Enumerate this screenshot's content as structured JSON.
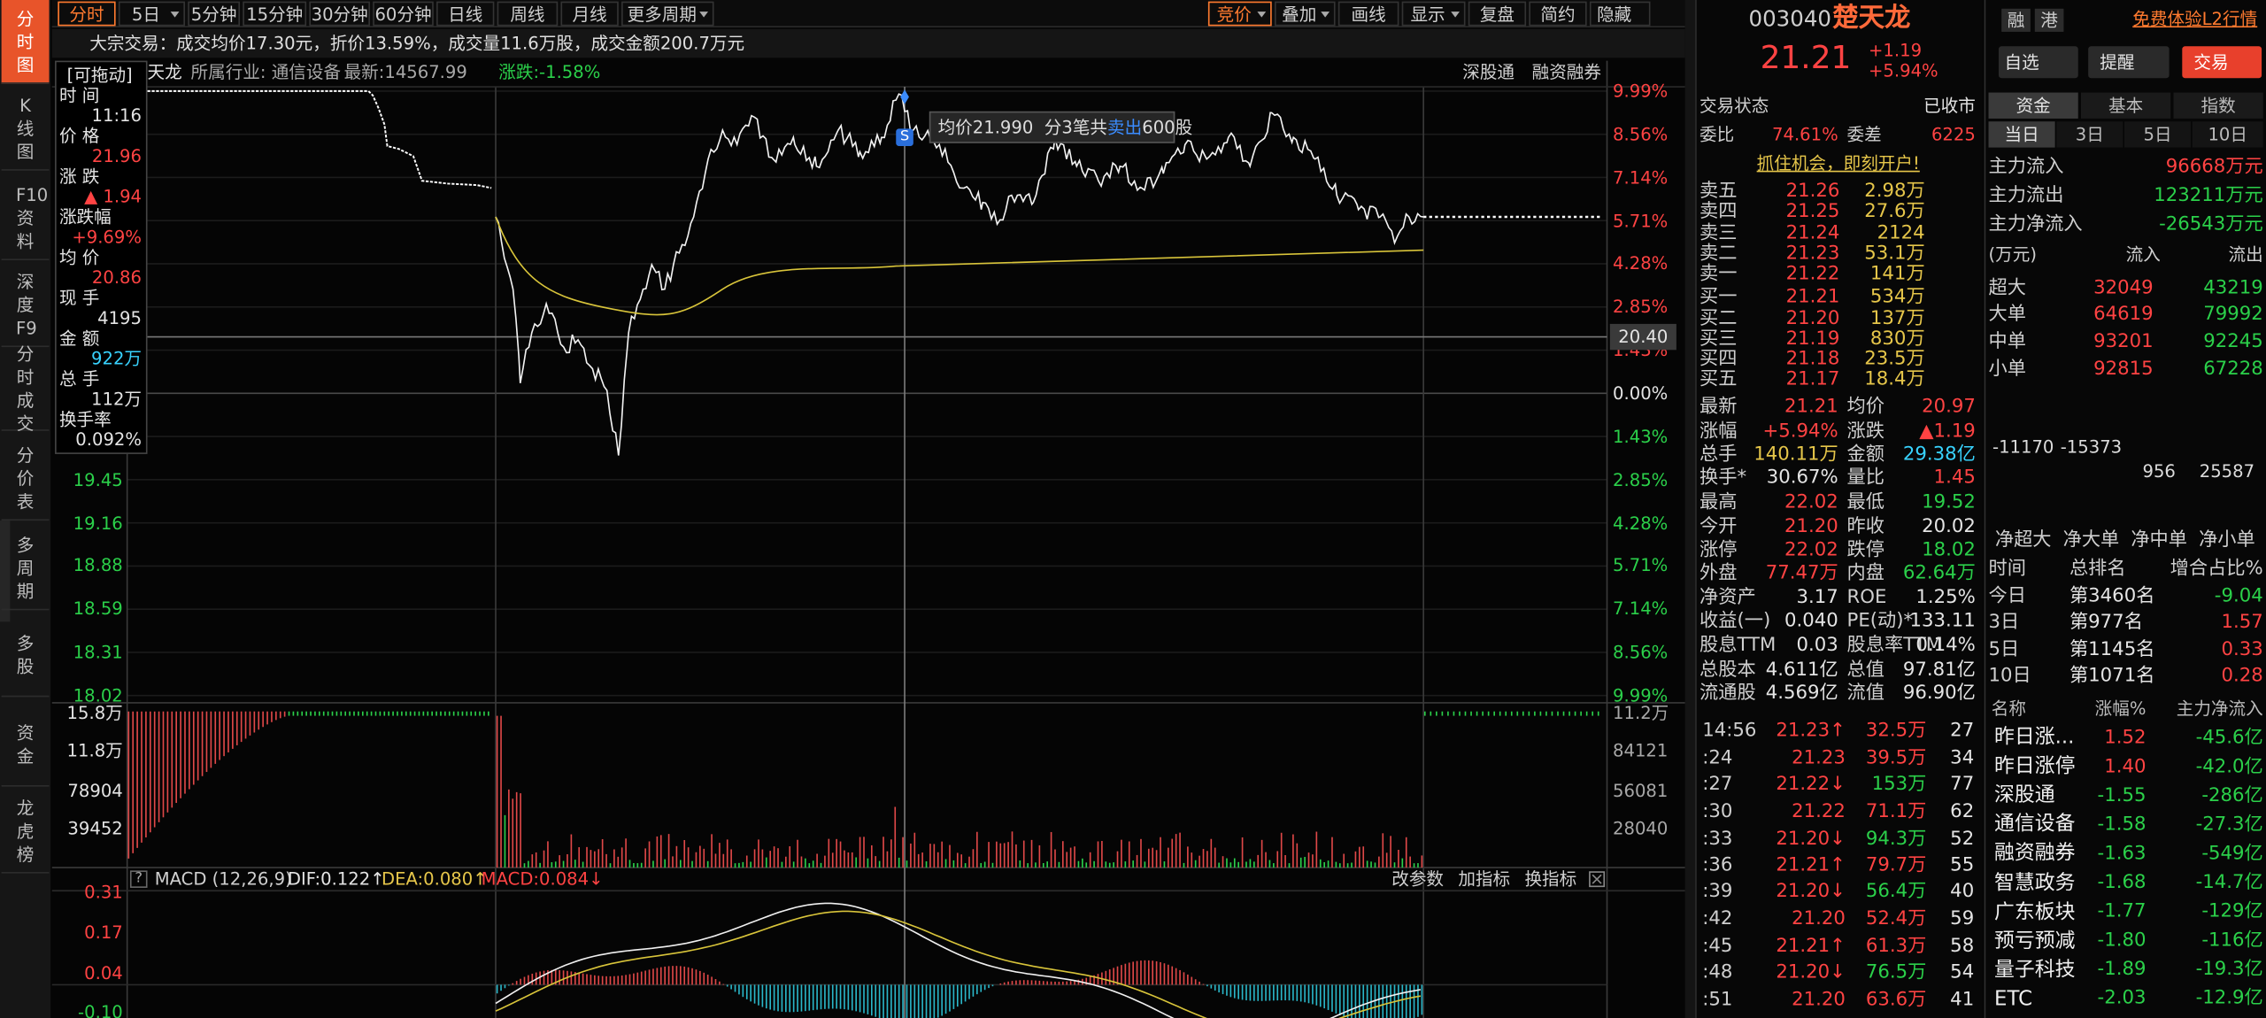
{
  "toolbar": {
    "periods": [
      "分时",
      "5日",
      "5分钟",
      "15分钟",
      "30分钟",
      "60分钟",
      "日线",
      "周线",
      "月线",
      "更多周期"
    ],
    "tools": [
      "竞价",
      "叠加",
      "画线",
      "显示",
      "复盘",
      "简约",
      "隐藏"
    ]
  },
  "sidebar": [
    "分时图",
    "K线图",
    "F10资料",
    "深度F9",
    "分时成交",
    "分价表",
    "多周期",
    "多股",
    "资金",
    "龙虎榜"
  ],
  "notice": "大宗交易：成交均价17.30元，折价13.59%，成交量11.6万股，成交金额200.7万元",
  "chart_header": {
    "name": "天龙",
    "industry": "所属行业: 通信设备",
    "latest": "最新:14567.99",
    "change": "涨跌:-1.58%",
    "links": [
      "深股通",
      "融资融券"
    ]
  },
  "info_box": {
    "drag": "[可拖动]",
    "rows": [
      [
        "时 间",
        "11:16"
      ],
      [
        "价 格",
        "21.96"
      ],
      [
        "涨 跌",
        "▲ 1.94"
      ],
      [
        "涨跌幅",
        "+9.69%"
      ],
      [
        "均 价",
        "20.86"
      ],
      [
        "现 手",
        "4195"
      ],
      [
        "金 额",
        "922万"
      ],
      [
        "总 手",
        "112万"
      ],
      [
        "换手率",
        "0.092%"
      ]
    ]
  },
  "price_axis": {
    "left": [
      "19.45",
      "19.16",
      "18.88",
      "18.59",
      "18.31",
      "18.02"
    ],
    "right": [
      "9.99%",
      "8.56%",
      "7.14%",
      "5.71%",
      "4.28%",
      "2.85%",
      "1.43%",
      "0.00%",
      "1.43%",
      "2.85%",
      "4.28%",
      "5.71%",
      "7.14%",
      "8.56%",
      "9.99%"
    ]
  },
  "crosshair_label": "20.40",
  "sell_marker": "S",
  "tooltip": {
    "prefix": "均价21.990  分3笔共",
    "action": "卖出",
    "suffix": "600股"
  },
  "volume_axis": {
    "left": [
      "15.8万",
      "11.8万",
      "78904",
      "39452"
    ],
    "right": [
      "11.2万",
      "84121",
      "56081",
      "28040"
    ]
  },
  "macd": {
    "help": "?",
    "name": "MACD (12,26,9)",
    "dif": "DIF:0.122↑",
    "dea": "DEA:0.080↑",
    "macd": "MACD:0.084↓",
    "actions": [
      "改参数",
      "加指标",
      "换指标"
    ],
    "axis": [
      "0.31",
      "0.17",
      "0.04",
      "-0.10"
    ]
  },
  "quote": {
    "code": "003040",
    "name": "楚天龙",
    "tags": [
      "融",
      "港"
    ],
    "l2": "免费体验L2行情",
    "price": "21.21",
    "change": "+1.19",
    "pct": "+5.94%",
    "buttons": [
      "自选",
      "提醒",
      "交易"
    ],
    "status": [
      "交易状态",
      "已收市"
    ],
    "ratio": [
      "委比",
      "74.61%",
      "委差",
      "6225"
    ],
    "promo": "抓住机会，即刻开户!",
    "book": [
      [
        "卖五",
        "21.26",
        "2.98万"
      ],
      [
        "卖四",
        "21.25",
        "27.6万"
      ],
      [
        "卖三",
        "21.24",
        "2124"
      ],
      [
        "卖二",
        "21.23",
        "53.1万"
      ],
      [
        "卖一",
        "21.22",
        "141万"
      ],
      [
        "买一",
        "21.21",
        "534万"
      ],
      [
        "买二",
        "21.20",
        "137万"
      ],
      [
        "买三",
        "21.19",
        "830万"
      ],
      [
        "买四",
        "21.18",
        "23.5万"
      ],
      [
        "买五",
        "21.17",
        "18.4万"
      ]
    ],
    "stats": [
      [
        "最新",
        "21.21",
        "均价",
        "20.97"
      ],
      [
        "涨幅",
        "+5.94%",
        "涨跌",
        "▲1.19"
      ],
      [
        "总手",
        "140.11万",
        "金额",
        "29.38亿"
      ],
      [
        "换手*",
        "30.67%",
        "量比",
        "1.45"
      ],
      [
        "最高",
        "22.02",
        "最低",
        "19.52"
      ],
      [
        "今开",
        "21.20",
        "昨收",
        "20.02"
      ],
      [
        "涨停",
        "22.02",
        "跌停",
        "18.02"
      ],
      [
        "外盘",
        "77.47万",
        "内盘",
        "62.64万"
      ],
      [
        "净资产",
        "3.17",
        "ROE",
        "1.25%"
      ],
      [
        "收益(一)",
        "0.040",
        "PE(动)*",
        "133.11"
      ],
      [
        "股息TTM",
        "0.03",
        "股息率TTM",
        "0.14%"
      ],
      [
        "总股本",
        "4.611亿",
        "总值",
        "97.81亿"
      ],
      [
        "流通股",
        "4.569亿",
        "流值",
        "96.90亿"
      ]
    ],
    "ticks": [
      [
        "14:56",
        "21.23↑",
        "32.5万",
        "27"
      ],
      [
        ":24",
        "21.23",
        "39.5万",
        "34"
      ],
      [
        ":27",
        "21.22↓",
        "153万",
        "77"
      ],
      [
        ":30",
        "21.22",
        "71.1万",
        "62"
      ],
      [
        ":33",
        "21.20↓",
        "94.3万",
        "52"
      ],
      [
        ":36",
        "21.21↑",
        "79.7万",
        "55"
      ],
      [
        ":39",
        "21.20↓",
        "56.4万",
        "40"
      ],
      [
        ":42",
        "21.20",
        "52.4万",
        "59"
      ],
      [
        ":45",
        "21.21↑",
        "61.3万",
        "58"
      ],
      [
        ":48",
        "21.20↓",
        "76.5万",
        "54"
      ],
      [
        ":51",
        "21.20",
        "63.6万",
        "41"
      ]
    ]
  },
  "fund_panel": {
    "tabs": [
      "资金",
      "基本",
      "指数"
    ],
    "periods": [
      "当日",
      "3日",
      "5日",
      "10日"
    ],
    "main_flow": [
      [
        "主力流入",
        "96668万元"
      ],
      [
        "主力流出",
        "123211万元"
      ],
      [
        "主力净流入",
        "-26543万元"
      ]
    ],
    "flow_header": [
      "(万元)",
      "流入",
      "流出"
    ],
    "flow_rows": [
      [
        "超大",
        "32049",
        "43219"
      ],
      [
        "大单",
        "64619",
        "79992"
      ],
      [
        "中单",
        "93201",
        "92245"
      ],
      [
        "小单",
        "92815",
        "67228"
      ]
    ],
    "net_values": [
      -11170,
      -15373,
      956,
      25587
    ],
    "net_labels": [
      "净超大",
      "净大单",
      "净中单",
      "净小单"
    ],
    "rank_header": [
      "时间",
      "总排名",
      "增合占比%"
    ],
    "rank_rows": [
      [
        "今日",
        "第3460名",
        "-9.04"
      ],
      [
        "3日",
        "第977名",
        "1.57"
      ],
      [
        "5日",
        "第1145名",
        "0.33"
      ],
      [
        "10日",
        "第1071名",
        "0.28"
      ]
    ],
    "sector_header": [
      "名称",
      "涨幅%",
      "主力净流入"
    ],
    "sectors": [
      [
        "昨日涨...",
        "1.52",
        "-45.6亿"
      ],
      [
        "昨日涨停",
        "1.40",
        "-42.0亿"
      ],
      [
        "深股通",
        "-1.55",
        "-286亿"
      ],
      [
        "通信设备",
        "-1.58",
        "-27.3亿"
      ],
      [
        "融资融券",
        "-1.63",
        "-549亿"
      ],
      [
        "智慧政务",
        "-1.68",
        "-14.7亿"
      ],
      [
        "广东板块",
        "-1.77",
        "-129亿"
      ],
      [
        "预亏预减",
        "-1.80",
        "-116亿"
      ],
      [
        "量子科技",
        "-1.89",
        "-19.3亿"
      ],
      [
        "ETC",
        "-2.03",
        "-12.9亿"
      ]
    ]
  }
}
